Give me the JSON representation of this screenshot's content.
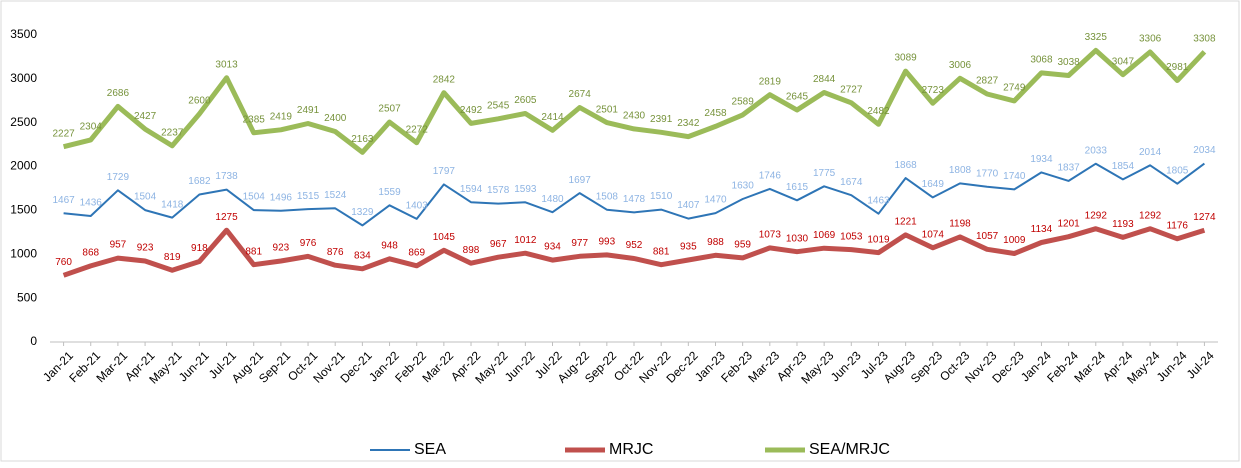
{
  "chart_data": {
    "type": "line",
    "categories": [
      "Jan-21",
      "Feb-21",
      "Mar-21",
      "Apr-21",
      "May-21",
      "Jun-21",
      "Jul-21",
      "Aug-21",
      "Sep-21",
      "Oct-21",
      "Nov-21",
      "Dec-21",
      "Jan-22",
      "Feb-22",
      "Mar-22",
      "Apr-22",
      "May-22",
      "Jun-22",
      "Jul-22",
      "Aug-22",
      "Sep-22",
      "Oct-22",
      "Nov-22",
      "Dec-22",
      "Jan-23",
      "Feb-23",
      "Mar-23",
      "Apr-23",
      "May-23",
      "Jun-23",
      "Jul-23",
      "Aug-23",
      "Sep-23",
      "Oct-23",
      "Nov-23",
      "Dec-23",
      "Jan-24",
      "Feb-24",
      "Mar-24",
      "Apr-24",
      "May-24",
      "Jun-24",
      "Jul-24"
    ],
    "series": [
      {
        "name": "SEA",
        "color": "#2e75b6",
        "label_color": "#8eb4e3",
        "width": 2,
        "values": [
          1467,
          1436,
          1729,
          1504,
          1418,
          1682,
          1738,
          1504,
          1496,
          1515,
          1524,
          1329,
          1559,
          1403,
          1797,
          1594,
          1578,
          1593,
          1480,
          1697,
          1508,
          1478,
          1510,
          1407,
          1470,
          1630,
          1746,
          1615,
          1775,
          1674,
          1463,
          1868,
          1649,
          1808,
          1770,
          1740,
          1934,
          1837,
          2033,
          1854,
          2014,
          1805,
          2034
        ]
      },
      {
        "name": "MRJC",
        "color": "#c0504d",
        "label_color": "#c00000",
        "width": 5,
        "values": [
          760,
          868,
          957,
          923,
          819,
          918,
          1275,
          881,
          923,
          976,
          876,
          834,
          948,
          869,
          1045,
          898,
          967,
          1012,
          934,
          977,
          993,
          952,
          881,
          935,
          988,
          959,
          1073,
          1030,
          1069,
          1053,
          1019,
          1221,
          1074,
          1198,
          1057,
          1009,
          1134,
          1201,
          1292,
          1193,
          1292,
          1176,
          1274
        ]
      },
      {
        "name": "SEA/MRJC",
        "color": "#9bbb59",
        "label_color": "#77933c",
        "width": 5,
        "values": [
          2227,
          2304,
          2686,
          2427,
          2237,
          2600,
          3013,
          2385,
          2419,
          2491,
          2400,
          2163,
          2507,
          2272,
          2842,
          2492,
          2545,
          2605,
          2414,
          2674,
          2501,
          2430,
          2391,
          2342,
          2458,
          2589,
          2819,
          2645,
          2844,
          2727,
          2482,
          3089,
          2723,
          3006,
          2827,
          2749,
          3068,
          3038,
          3325,
          3047,
          3306,
          2981,
          3308
        ]
      }
    ],
    "ylim": [
      0,
      3500
    ],
    "yticks": [
      0,
      500,
      1000,
      1500,
      2000,
      2500,
      3000,
      3500
    ],
    "grid": false,
    "legend": "bottom"
  }
}
